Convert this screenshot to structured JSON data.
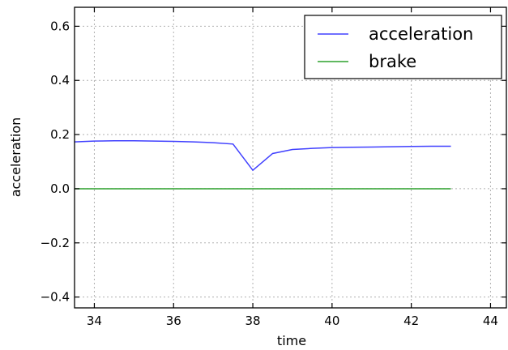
{
  "chart_data": {
    "type": "line",
    "title": "",
    "xlabel": "time",
    "ylabel": "acceleration",
    "xlim": [
      33.5,
      44.4
    ],
    "ylim": [
      -0.44,
      0.67
    ],
    "xticks": [
      34,
      36,
      38,
      40,
      42,
      44
    ],
    "yticks": [
      0.6,
      0.4,
      0.2,
      0.0,
      -0.2,
      -0.4
    ],
    "xtick_labels": [
      "34",
      "36",
      "38",
      "40",
      "42",
      "44"
    ],
    "ytick_labels": [
      "0.6",
      "0.4",
      "0.2",
      "0.0",
      "−0.2",
      "−0.4"
    ],
    "grid": true,
    "legend_position": "top-right",
    "series": [
      {
        "name": "acceleration",
        "color": "#4040ff",
        "x": [
          33.5,
          34.0,
          34.5,
          35.0,
          35.5,
          36.0,
          36.5,
          37.0,
          37.5,
          38.0,
          38.5,
          39.0,
          39.5,
          40.0,
          40.5,
          41.0,
          41.5,
          42.0,
          42.5,
          43.0
        ],
        "y": [
          0.173,
          0.176,
          0.177,
          0.177,
          0.176,
          0.175,
          0.173,
          0.17,
          0.165,
          0.068,
          0.13,
          0.145,
          0.149,
          0.152,
          0.153,
          0.154,
          0.155,
          0.156,
          0.157,
          0.157
        ]
      },
      {
        "name": "brake",
        "color": "#2ca02c",
        "x": [
          33.5,
          43.0
        ],
        "y": [
          0.0,
          0.0
        ]
      }
    ]
  }
}
